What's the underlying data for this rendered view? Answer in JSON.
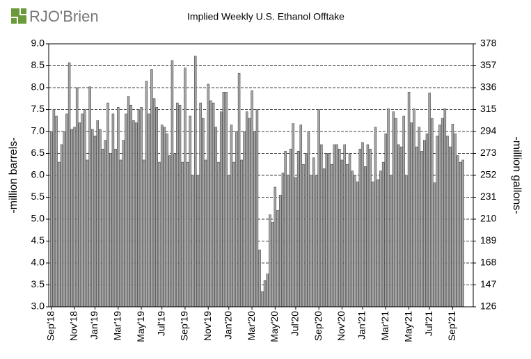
{
  "logo": "RJO'Brien",
  "chart_data": {
    "type": "bar",
    "title": "Implied  Weekly U.S. Ethanol Offtake",
    "ylabel": "-million barrels-",
    "y2label": "-million gallons-",
    "color": "#a6a6a6",
    "grid": true,
    "ylim": [
      3.0,
      9.0
    ],
    "yticks": [
      {
        "value": 3.0,
        "label": "3.0"
      },
      {
        "value": 3.5,
        "label": "3.5"
      },
      {
        "value": 4.0,
        "label": "4.0"
      },
      {
        "value": 4.5,
        "label": "4.5"
      },
      {
        "value": 5.0,
        "label": "5.0"
      },
      {
        "value": 5.5,
        "label": "5.5"
      },
      {
        "value": 6.0,
        "label": "6.0"
      },
      {
        "value": 6.5,
        "label": "6.5"
      },
      {
        "value": 7.0,
        "label": "7.0"
      },
      {
        "value": 7.5,
        "label": "7.5"
      },
      {
        "value": 8.0,
        "label": "8.0"
      },
      {
        "value": 8.5,
        "label": "8.5"
      },
      {
        "value": 9.0,
        "label": "9.0"
      }
    ],
    "y2lim": [
      126,
      378
    ],
    "y2ticks": [
      126,
      147,
      168,
      189,
      210,
      231,
      252,
      273,
      294,
      315,
      336,
      357,
      378
    ],
    "categories": [
      "Sep'18",
      null,
      null,
      null,
      null,
      null,
      null,
      null,
      null,
      "Nov'18",
      null,
      null,
      null,
      null,
      null,
      null,
      null,
      "Jan'19",
      null,
      null,
      null,
      null,
      null,
      null,
      null,
      null,
      "Mar'19",
      null,
      null,
      null,
      null,
      null,
      null,
      null,
      null,
      "May'19",
      null,
      null,
      null,
      null,
      null,
      null,
      null,
      "Jul'19",
      null,
      null,
      null,
      null,
      null,
      null,
      null,
      null,
      "Sep'19",
      null,
      null,
      null,
      null,
      null,
      null,
      null,
      null,
      "Nov'19",
      null,
      null,
      null,
      null,
      null,
      null,
      null,
      "Jan'20",
      null,
      null,
      null,
      null,
      null,
      null,
      null,
      null,
      "Mar'20",
      null,
      null,
      null,
      null,
      null,
      null,
      null,
      null,
      "May'20",
      null,
      null,
      null,
      null,
      null,
      null,
      null,
      "Jul'20",
      null,
      null,
      null,
      null,
      null,
      null,
      null,
      null,
      "Sep'20",
      null,
      null,
      null,
      null,
      null,
      null,
      null,
      null,
      "Nov'20",
      null,
      null,
      null,
      null,
      null,
      null,
      null,
      "Jan'21",
      null,
      null,
      null,
      null,
      null,
      null,
      null,
      null,
      "Mar'21",
      null,
      null,
      null,
      null,
      null,
      null,
      null,
      null,
      "May'21",
      null,
      null,
      null,
      null,
      null,
      null,
      null,
      "Jul'21",
      null,
      null,
      null,
      null,
      null,
      null,
      null,
      null,
      "Sep'21",
      null,
      null,
      null,
      null
    ],
    "values": [
      7.0,
      7.5,
      7.35,
      6.3,
      6.7,
      7.0,
      7.4,
      8.57,
      7.05,
      7.1,
      8.0,
      7.2,
      7.4,
      7.5,
      6.35,
      8.02,
      7.05,
      6.9,
      7.25,
      7.05,
      6.6,
      6.8,
      7.65,
      6.5,
      7.4,
      6.6,
      7.55,
      6.35,
      6.8,
      7.4,
      7.8,
      7.6,
      7.25,
      7.2,
      7.5,
      7.55,
      6.35,
      8.15,
      7.4,
      8.42,
      7.75,
      7.55,
      6.3,
      7.15,
      7.1,
      6.95,
      6.45,
      8.62,
      6.5,
      7.65,
      7.6,
      6.3,
      8.45,
      6.3,
      7.35,
      6.0,
      8.72,
      6.0,
      7.65,
      7.3,
      6.35,
      8.08,
      7.7,
      7.65,
      7.1,
      6.3,
      7.45,
      7.9,
      7.9,
      6.0,
      7.15,
      6.3,
      7.0,
      8.33,
      6.35,
      7.0,
      7.45,
      7.3,
      7.93,
      7.0,
      7.5,
      4.3,
      3.35,
      3.6,
      3.75,
      5.1,
      4.93,
      5.73,
      5.2,
      5.55,
      6.05,
      6.55,
      6.0,
      6.6,
      7.18,
      5.95,
      6.55,
      7.15,
      6.25,
      6.5,
      7.0,
      6.0,
      6.4,
      6.0,
      7.5,
      6.7,
      6.15,
      6.5,
      6.5,
      6.25,
      6.7,
      6.7,
      6.6,
      6.35,
      6.7,
      6.25,
      6.5,
      6.1,
      6.0,
      5.85,
      6.6,
      6.75,
      6.2,
      6.7,
      6.6,
      5.85,
      7.1,
      5.9,
      6.1,
      6.3,
      6.95,
      7.52,
      6.0,
      7.45,
      7.3,
      6.7,
      6.65,
      7.35,
      6.0,
      7.9,
      7.2,
      7.52,
      6.65,
      7.1,
      6.55,
      6.8,
      6.95,
      7.88,
      7.3,
      5.83,
      6.9,
      7.15,
      7.3,
      7.52,
      6.9,
      6.65,
      7.17,
      6.95,
      6.45,
      6.3,
      6.35
    ]
  }
}
